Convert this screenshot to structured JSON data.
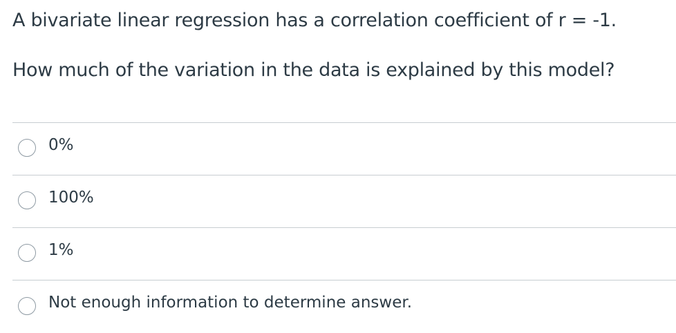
{
  "question": {
    "lines": [
      "A bivariate linear regression has a correlation coefficient of r = -1.",
      "How much of the variation in the data is explained by this model?"
    ]
  },
  "options": [
    "0%",
    "100%",
    "1%",
    "Not enough information to determine answer."
  ]
}
